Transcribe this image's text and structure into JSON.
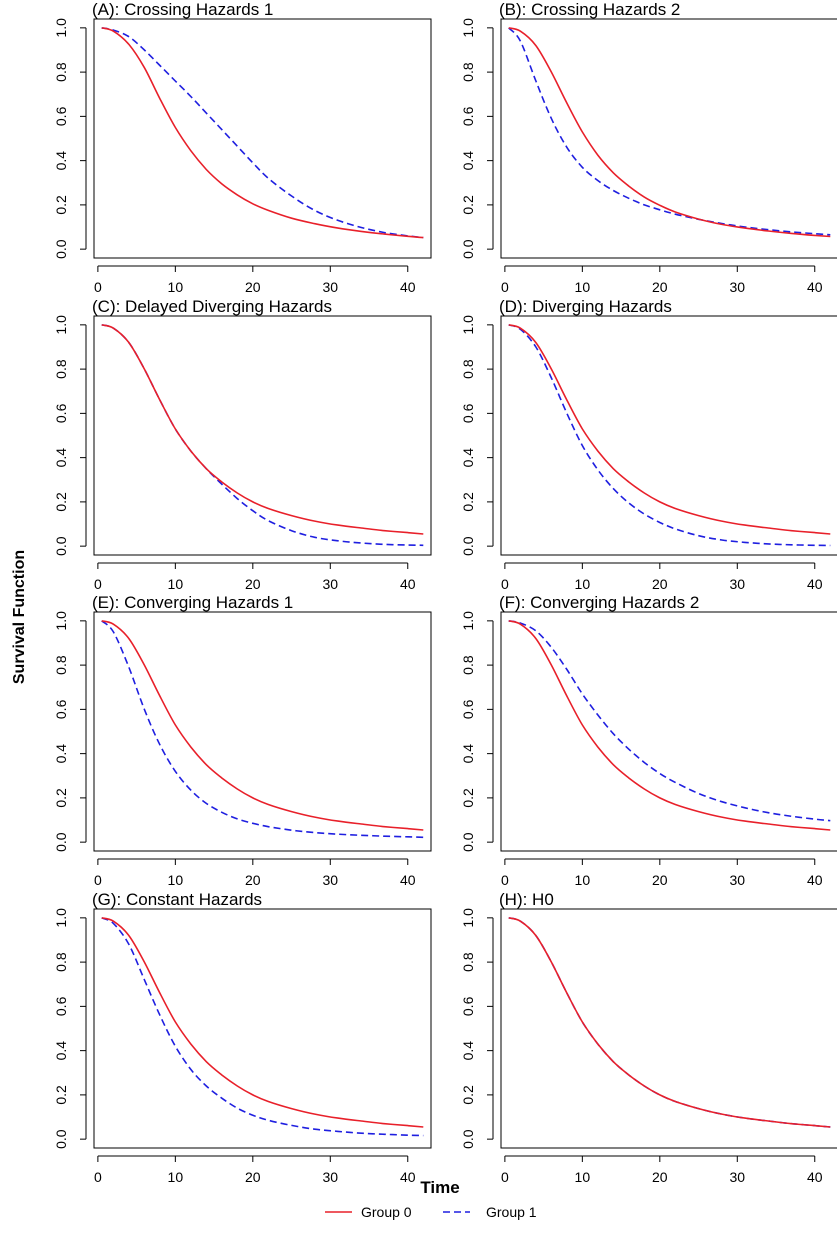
{
  "figure": {
    "ylabel": "Survival Function",
    "xlabel": "Time",
    "legend": [
      {
        "label": "Group 0",
        "color": "#e8202a",
        "style": "solid"
      },
      {
        "label": "Group 1",
        "color": "#1f1fe0",
        "style": "dashed"
      }
    ]
  },
  "chart_data": [
    {
      "type": "line",
      "title": "(A): Crossing Hazards 1",
      "xticks": [
        0,
        10,
        20,
        30,
        40
      ],
      "yticks": [
        "0.0",
        "0.2",
        "0.4",
        "0.6",
        "0.8",
        "1.0"
      ],
      "xlim": [
        -0.5,
        43
      ],
      "ylim": [
        -0.04,
        1.04
      ],
      "grid": false,
      "x": [
        0.5,
        2,
        4,
        6,
        8,
        10,
        12,
        14,
        16,
        18,
        20,
        22,
        25,
        28,
        31,
        34,
        37,
        40,
        42
      ],
      "series": [
        {
          "name": "Group 0",
          "values": [
            1.0,
            0.985,
            0.925,
            0.82,
            0.68,
            0.55,
            0.445,
            0.36,
            0.295,
            0.245,
            0.205,
            0.175,
            0.14,
            0.115,
            0.095,
            0.08,
            0.068,
            0.058,
            0.052
          ]
        },
        {
          "name": "Group 1",
          "values": [
            1.0,
            0.99,
            0.96,
            0.9,
            0.83,
            0.76,
            0.69,
            0.615,
            0.54,
            0.465,
            0.39,
            0.32,
            0.24,
            0.175,
            0.13,
            0.098,
            0.075,
            0.06,
            0.052
          ]
        }
      ]
    },
    {
      "type": "line",
      "title": "(B): Crossing Hazards 2",
      "xticks": [
        0,
        10,
        20,
        30,
        40
      ],
      "yticks": [
        "0.0",
        "0.2",
        "0.4",
        "0.6",
        "0.8",
        "1.0"
      ],
      "xlim": [
        -0.5,
        43
      ],
      "ylim": [
        -0.04,
        1.04
      ],
      "grid": false,
      "x": [
        0.5,
        2,
        4,
        6,
        8,
        10,
        12,
        14,
        16,
        18,
        20,
        22,
        25,
        28,
        31,
        34,
        37,
        40,
        42
      ],
      "series": [
        {
          "name": "Group 0",
          "values": [
            1.0,
            0.985,
            0.92,
            0.8,
            0.66,
            0.53,
            0.425,
            0.345,
            0.285,
            0.235,
            0.198,
            0.168,
            0.136,
            0.112,
            0.095,
            0.082,
            0.071,
            0.062,
            0.057
          ]
        },
        {
          "name": "Group 1",
          "values": [
            1.0,
            0.94,
            0.76,
            0.59,
            0.46,
            0.37,
            0.31,
            0.265,
            0.23,
            0.2,
            0.178,
            0.158,
            0.135,
            0.116,
            0.1,
            0.088,
            0.078,
            0.07,
            0.065
          ]
        }
      ]
    },
    {
      "type": "line",
      "title": "(C): Delayed Diverging Hazards",
      "xticks": [
        0,
        10,
        20,
        30,
        40
      ],
      "yticks": [
        "0.0",
        "0.2",
        "0.4",
        "0.6",
        "0.8",
        "1.0"
      ],
      "xlim": [
        -0.5,
        43
      ],
      "ylim": [
        -0.04,
        1.04
      ],
      "grid": false,
      "x": [
        0.5,
        2,
        4,
        6,
        8,
        10,
        12,
        14,
        16,
        18,
        20,
        22,
        25,
        28,
        31,
        34,
        37,
        40,
        42
      ],
      "series": [
        {
          "name": "Group 0",
          "values": [
            1.0,
            0.985,
            0.92,
            0.8,
            0.66,
            0.53,
            0.43,
            0.35,
            0.29,
            0.24,
            0.2,
            0.17,
            0.138,
            0.113,
            0.095,
            0.082,
            0.07,
            0.061,
            0.055
          ]
        },
        {
          "name": "Group 1",
          "values": [
            1.0,
            0.985,
            0.92,
            0.8,
            0.66,
            0.53,
            0.43,
            0.35,
            0.28,
            0.215,
            0.16,
            0.115,
            0.07,
            0.04,
            0.024,
            0.014,
            0.008,
            0.005,
            0.004
          ]
        }
      ]
    },
    {
      "type": "line",
      "title": "(D): Diverging Hazards",
      "xticks": [
        0,
        10,
        20,
        30,
        40
      ],
      "yticks": [
        "0.0",
        "0.2",
        "0.4",
        "0.6",
        "0.8",
        "1.0"
      ],
      "xlim": [
        -0.5,
        43
      ],
      "ylim": [
        -0.04,
        1.04
      ],
      "grid": false,
      "x": [
        0.5,
        2,
        4,
        6,
        8,
        10,
        12,
        14,
        16,
        18,
        20,
        22,
        25,
        28,
        31,
        34,
        37,
        40,
        42
      ],
      "series": [
        {
          "name": "Group 0",
          "values": [
            1.0,
            0.985,
            0.92,
            0.8,
            0.66,
            0.53,
            0.43,
            0.35,
            0.29,
            0.24,
            0.2,
            0.17,
            0.138,
            0.113,
            0.095,
            0.082,
            0.07,
            0.061,
            0.055
          ]
        },
        {
          "name": "Group 1",
          "values": [
            1.0,
            0.98,
            0.9,
            0.76,
            0.6,
            0.455,
            0.345,
            0.26,
            0.195,
            0.145,
            0.107,
            0.078,
            0.047,
            0.028,
            0.017,
            0.01,
            0.006,
            0.004,
            0.003
          ]
        }
      ]
    },
    {
      "type": "line",
      "title": "(E): Converging Hazards 1",
      "xticks": [
        0,
        10,
        20,
        30,
        40
      ],
      "yticks": [
        "0.0",
        "0.2",
        "0.4",
        "0.6",
        "0.8",
        "1.0"
      ],
      "xlim": [
        -0.5,
        43
      ],
      "ylim": [
        -0.04,
        1.04
      ],
      "grid": false,
      "x": [
        0.5,
        2,
        4,
        6,
        8,
        10,
        12,
        14,
        16,
        18,
        20,
        22,
        25,
        28,
        31,
        34,
        37,
        40,
        42
      ],
      "series": [
        {
          "name": "Group 0",
          "values": [
            1.0,
            0.985,
            0.92,
            0.8,
            0.66,
            0.53,
            0.43,
            0.35,
            0.29,
            0.24,
            0.2,
            0.17,
            0.138,
            0.113,
            0.095,
            0.082,
            0.07,
            0.061,
            0.055
          ]
        },
        {
          "name": "Group 1",
          "values": [
            1.0,
            0.95,
            0.79,
            0.6,
            0.44,
            0.32,
            0.235,
            0.175,
            0.135,
            0.105,
            0.085,
            0.07,
            0.054,
            0.043,
            0.036,
            0.031,
            0.027,
            0.024,
            0.022
          ]
        }
      ]
    },
    {
      "type": "line",
      "title": "(F): Converging Hazards 2",
      "xticks": [
        0,
        10,
        20,
        30,
        40
      ],
      "yticks": [
        "0.0",
        "0.2",
        "0.4",
        "0.6",
        "0.8",
        "1.0"
      ],
      "xlim": [
        -0.5,
        43
      ],
      "ylim": [
        -0.04,
        1.04
      ],
      "grid": false,
      "x": [
        0.5,
        2,
        4,
        6,
        8,
        10,
        12,
        14,
        16,
        18,
        20,
        22,
        25,
        28,
        31,
        34,
        37,
        40,
        42
      ],
      "series": [
        {
          "name": "Group 0",
          "values": [
            1.0,
            0.985,
            0.92,
            0.8,
            0.66,
            0.53,
            0.43,
            0.35,
            0.29,
            0.24,
            0.2,
            0.17,
            0.138,
            0.113,
            0.095,
            0.082,
            0.07,
            0.061,
            0.055
          ]
        },
        {
          "name": "Group 1",
          "values": [
            1.0,
            0.99,
            0.955,
            0.88,
            0.78,
            0.67,
            0.575,
            0.49,
            0.42,
            0.36,
            0.31,
            0.27,
            0.22,
            0.183,
            0.155,
            0.133,
            0.117,
            0.104,
            0.097
          ]
        }
      ]
    },
    {
      "type": "line",
      "title": "(G): Constant Hazards",
      "xticks": [
        0,
        10,
        20,
        30,
        40
      ],
      "yticks": [
        "0.0",
        "0.2",
        "0.4",
        "0.6",
        "0.8",
        "1.0"
      ],
      "xlim": [
        -0.5,
        43
      ],
      "ylim": [
        -0.04,
        1.04
      ],
      "grid": false,
      "x": [
        0.5,
        2,
        4,
        6,
        8,
        10,
        12,
        14,
        16,
        18,
        20,
        22,
        25,
        28,
        31,
        34,
        37,
        40,
        42
      ],
      "series": [
        {
          "name": "Group 0",
          "values": [
            1.0,
            0.985,
            0.92,
            0.8,
            0.66,
            0.53,
            0.43,
            0.35,
            0.29,
            0.24,
            0.2,
            0.17,
            0.138,
            0.113,
            0.095,
            0.082,
            0.07,
            0.061,
            0.055
          ]
        },
        {
          "name": "Group 1",
          "values": [
            1.0,
            0.975,
            0.88,
            0.72,
            0.56,
            0.42,
            0.315,
            0.24,
            0.185,
            0.14,
            0.108,
            0.085,
            0.062,
            0.045,
            0.035,
            0.027,
            0.022,
            0.018,
            0.016
          ]
        }
      ]
    },
    {
      "type": "line",
      "title": "(H): H0",
      "xticks": [
        0,
        10,
        20,
        30,
        40
      ],
      "yticks": [
        "0.0",
        "0.2",
        "0.4",
        "0.6",
        "0.8",
        "1.0"
      ],
      "xlim": [
        -0.5,
        43
      ],
      "ylim": [
        -0.04,
        1.04
      ],
      "grid": false,
      "x": [
        0.5,
        2,
        4,
        6,
        8,
        10,
        12,
        14,
        16,
        18,
        20,
        22,
        25,
        28,
        31,
        34,
        37,
        40,
        42
      ],
      "series": [
        {
          "name": "Group 0",
          "values": [
            1.0,
            0.985,
            0.92,
            0.8,
            0.66,
            0.53,
            0.43,
            0.35,
            0.29,
            0.24,
            0.2,
            0.17,
            0.138,
            0.113,
            0.095,
            0.082,
            0.07,
            0.061,
            0.055
          ]
        },
        {
          "name": "Group 1",
          "values": [
            1.0,
            0.985,
            0.92,
            0.8,
            0.66,
            0.53,
            0.43,
            0.35,
            0.29,
            0.24,
            0.2,
            0.17,
            0.138,
            0.113,
            0.095,
            0.082,
            0.07,
            0.061,
            0.055
          ]
        }
      ]
    }
  ]
}
